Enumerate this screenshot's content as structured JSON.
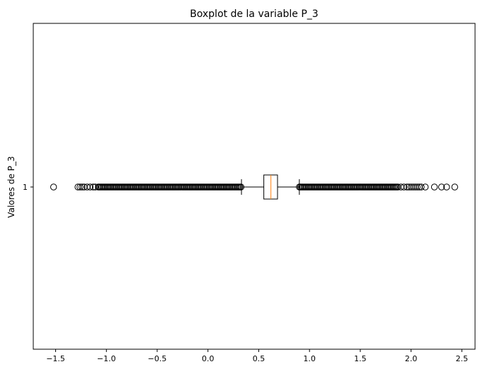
{
  "chart_data": {
    "type": "boxplot",
    "orientation": "horizontal",
    "title": "Boxplot de la variable P_3",
    "ylabel": "Valores de P_3",
    "xlabel": "",
    "xlim": [
      -1.72,
      2.63
    ],
    "xticks": [
      -1.5,
      -1.0,
      -0.5,
      0.0,
      0.5,
      1.0,
      1.5,
      2.0,
      2.5
    ],
    "xtick_labels": [
      "−1.5",
      "−1.0",
      "−0.5",
      "0.0",
      "0.5",
      "1.0",
      "1.5",
      "2.0",
      "2.5"
    ],
    "yticks": [
      "1"
    ],
    "grid": false,
    "box": {
      "category": "1",
      "q1": 0.55,
      "median": 0.62,
      "q3": 0.685,
      "whisker_low": 0.33,
      "whisker_high": 0.9
    },
    "outliers_low_isolated": [
      -1.52,
      -1.28,
      -1.26,
      -1.24,
      -1.22,
      -1.19,
      -1.16,
      -1.13,
      -1.11
    ],
    "outliers_low_dense_range": [
      -1.08,
      0.33
    ],
    "outliers_high_dense_range": [
      0.9,
      1.88
    ],
    "outliers_high_isolated": [
      1.9,
      1.93,
      1.96,
      1.98,
      2.0,
      2.02,
      2.04,
      2.06,
      2.08,
      2.1,
      2.14,
      2.23,
      2.3,
      2.35,
      2.43
    ],
    "colors": {
      "box": "#000000",
      "median": "#ff7f0e",
      "outlier_edge": "#000000"
    }
  }
}
